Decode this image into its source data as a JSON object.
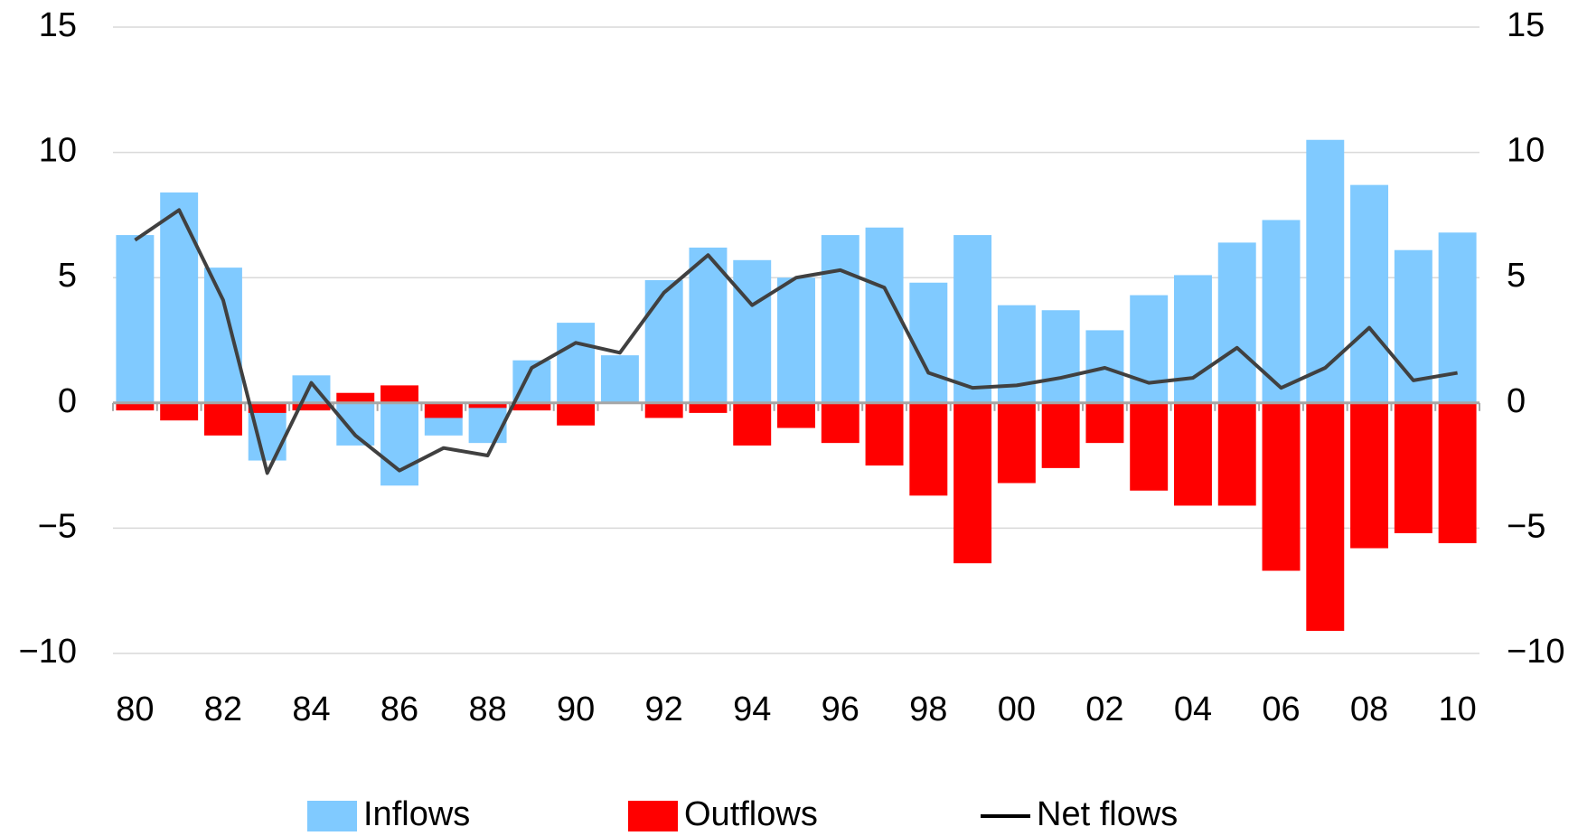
{
  "chart_data": {
    "type": "bar",
    "categories": [
      "80",
      null,
      "82",
      null,
      "84",
      null,
      "86",
      null,
      "88",
      null,
      "90",
      null,
      "92",
      null,
      "94",
      null,
      "96",
      null,
      "98",
      null,
      "00",
      null,
      "02",
      null,
      "04",
      null,
      "06",
      null,
      "08",
      null,
      "10"
    ],
    "series": [
      {
        "name": "Inflows",
        "color": "#80caff",
        "type": "bar",
        "values": [
          6.7,
          8.4,
          5.4,
          -2.3,
          1.1,
          -1.7,
          -3.3,
          -1.3,
          -1.6,
          1.7,
          3.2,
          1.9,
          4.9,
          6.2,
          5.7,
          5.0,
          6.7,
          7.0,
          4.8,
          6.7,
          3.9,
          3.7,
          2.9,
          4.3,
          5.1,
          6.4,
          7.3,
          10.5,
          8.7,
          6.1,
          6.8
        ]
      },
      {
        "name": "Outflows",
        "color": "#ff0000",
        "type": "bar",
        "values": [
          -0.3,
          -0.7,
          -1.3,
          -0.4,
          -0.3,
          0.4,
          0.7,
          -0.6,
          -0.2,
          -0.3,
          -0.9,
          0,
          -0.6,
          -0.4,
          -1.7,
          -1.0,
          -1.6,
          -2.5,
          -3.7,
          -6.4,
          -3.2,
          -2.6,
          -1.6,
          -3.5,
          -4.1,
          -4.1,
          -6.7,
          -9.1,
          -5.8,
          -5.2,
          -5.6
        ]
      },
      {
        "name": "Net flows",
        "color": "#404040",
        "type": "line",
        "values": [
          6.5,
          7.7,
          4.1,
          -2.8,
          0.8,
          -1.3,
          -2.7,
          -1.8,
          -2.1,
          1.4,
          2.4,
          2.0,
          4.4,
          5.9,
          3.9,
          5.0,
          5.3,
          4.6,
          1.2,
          0.6,
          0.7,
          1.0,
          1.4,
          0.8,
          1.0,
          2.2,
          0.6,
          1.4,
          3.0,
          0.9,
          1.2
        ]
      }
    ],
    "ylim": [
      -10,
      15
    ],
    "yticks": [
      {
        "value": -10,
        "label": "−10"
      },
      {
        "value": -5,
        "label": "−5"
      },
      0,
      5,
      10,
      15
    ],
    "y2lim": [
      -10,
      15
    ],
    "y2ticks": [
      {
        "value": -10,
        "label": "−10"
      },
      {
        "value": -5,
        "label": "−5"
      },
      0,
      5,
      10,
      15
    ],
    "grid": true,
    "legend": "bottom"
  }
}
